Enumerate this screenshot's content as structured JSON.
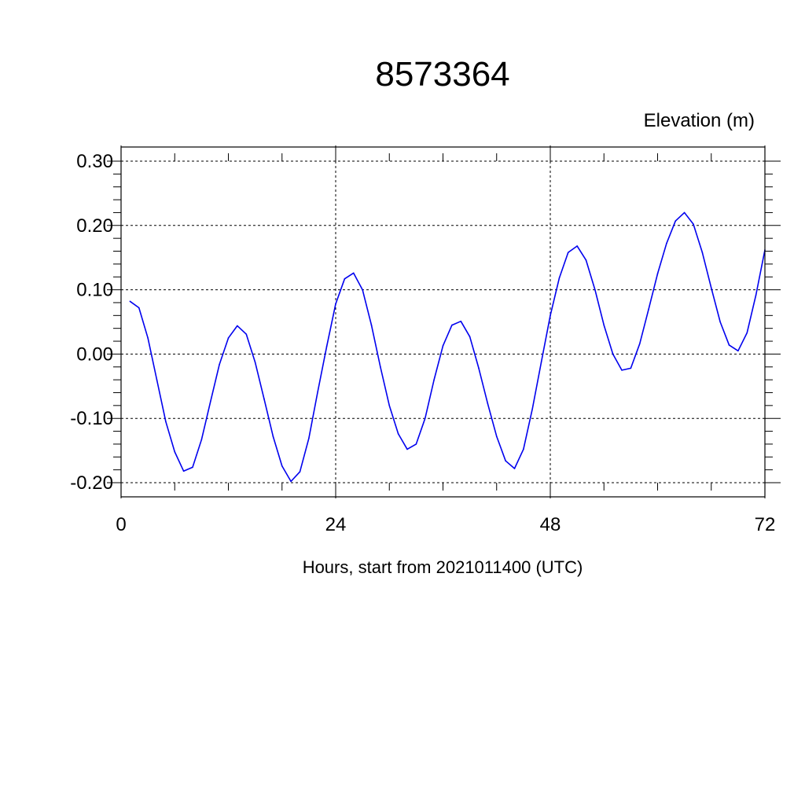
{
  "chart_data": {
    "type": "line",
    "title": "8573364",
    "ylabel": "Elevation (m)",
    "xlabel": "Hours, start from 2021011400 (UTC)",
    "xlim": [
      0,
      72
    ],
    "ylim": [
      -0.2,
      0.3
    ],
    "x_ticks": [
      0,
      24,
      48,
      72
    ],
    "x_tick_labels": [
      "0",
      "24",
      "48",
      "72"
    ],
    "y_ticks": [
      -0.2,
      -0.1,
      0.0,
      0.1,
      0.2,
      0.3
    ],
    "y_tick_labels": [
      "-0.20",
      "-0.10",
      "0.00",
      "0.10",
      "0.20",
      "0.30"
    ],
    "grid": true,
    "line_color": "#0000ee",
    "series": [
      {
        "x": [
          1,
          2,
          3,
          4,
          5,
          6,
          7,
          8,
          9,
          10,
          11,
          12,
          13,
          14,
          15,
          16,
          17,
          18,
          19,
          20,
          21,
          22,
          23,
          24,
          25,
          26,
          27,
          28,
          29,
          30,
          31,
          32,
          33,
          34,
          35,
          36,
          37,
          38,
          39,
          40,
          41,
          42,
          43,
          44,
          45,
          46,
          47,
          48,
          49,
          50,
          51,
          52,
          53,
          54,
          55,
          56,
          57,
          58,
          59,
          60,
          61,
          62,
          63,
          64,
          65,
          66,
          67,
          68,
          69,
          70,
          71,
          72
        ],
        "values": [
          0.082,
          0.072,
          0.025,
          -0.04,
          -0.105,
          -0.152,
          -0.182,
          -0.176,
          -0.133,
          -0.074,
          -0.016,
          0.025,
          0.044,
          0.031,
          -0.013,
          -0.07,
          -0.128,
          -0.174,
          -0.198,
          -0.183,
          -0.131,
          -0.058,
          0.012,
          0.078,
          0.117,
          0.126,
          0.1,
          0.045,
          -0.02,
          -0.08,
          -0.124,
          -0.148,
          -0.14,
          -0.1,
          -0.04,
          0.013,
          0.045,
          0.051,
          0.027,
          -0.022,
          -0.077,
          -0.128,
          -0.166,
          -0.178,
          -0.148,
          -0.085,
          -0.012,
          0.06,
          0.118,
          0.158,
          0.168,
          0.146,
          0.1,
          0.045,
          0.0,
          -0.025,
          -0.022,
          0.016,
          0.07,
          0.125,
          0.172,
          0.207,
          0.22,
          0.202,
          0.158,
          0.103,
          0.05,
          0.014,
          0.005,
          0.033,
          0.092,
          0.162
        ]
      }
    ]
  }
}
